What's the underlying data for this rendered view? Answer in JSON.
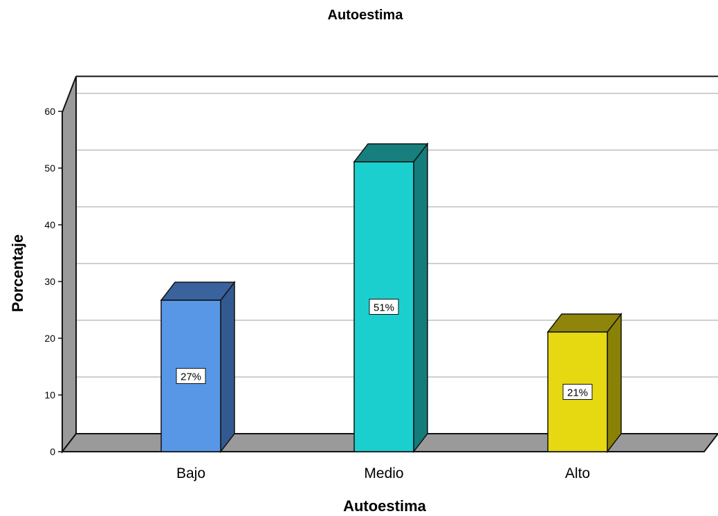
{
  "chart_data": {
    "type": "bar",
    "title": "Autoestima",
    "xlabel": "Autoestima",
    "ylabel": "Porcentaje",
    "categories": [
      "Bajo",
      "Medio",
      "Alto"
    ],
    "values": [
      26.7,
      51.1,
      21.1
    ],
    "data_labels": [
      "27%",
      "51%",
      "21%"
    ],
    "ylim": [
      0,
      63
    ],
    "yticks": [
      0,
      10,
      20,
      30,
      40,
      50,
      60
    ],
    "grid": true,
    "three_d": true,
    "colors": {
      "bars": [
        {
          "front": "#5797e6",
          "side": "#335991",
          "top": "#3a629c"
        },
        {
          "front": "#1ccfcf",
          "side": "#147d7b",
          "top": "#17807e"
        },
        {
          "front": "#e6d811",
          "side": "#8a8107",
          "top": "#8f850b"
        }
      ],
      "wall": "#9a9a9a",
      "floor": "#9a9a9a",
      "grid": "#cfcfcf"
    }
  }
}
